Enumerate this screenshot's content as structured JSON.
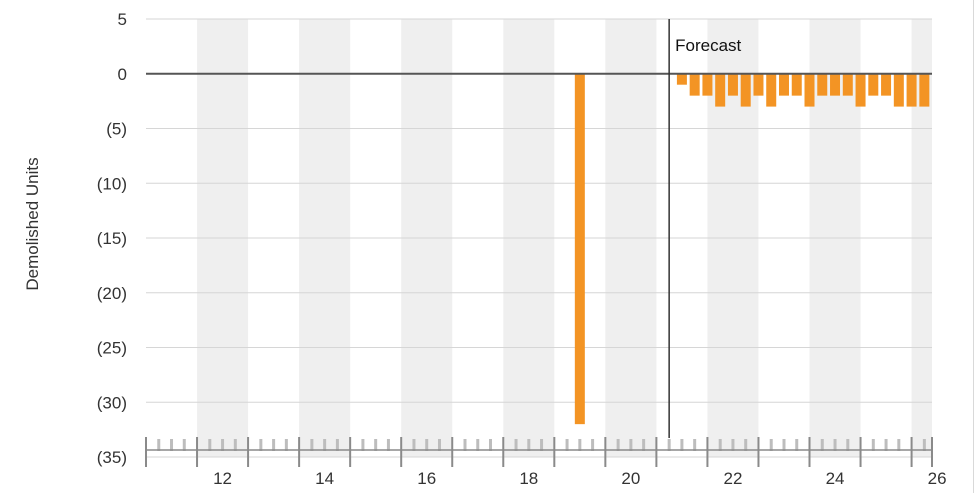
{
  "chart_data": {
    "type": "bar",
    "title": "",
    "xlabel": "",
    "ylabel": "Demolished Units",
    "ylim": [
      -35,
      5
    ],
    "xlim": [
      10.5,
      25.9
    ],
    "y_ticks": [
      {
        "value": 5,
        "label": "5"
      },
      {
        "value": 0,
        "label": "0"
      },
      {
        "value": -5,
        "label": "(5)"
      },
      {
        "value": -10,
        "label": "(10)"
      },
      {
        "value": -15,
        "label": "(15)"
      },
      {
        "value": -20,
        "label": "(20)"
      },
      {
        "value": -25,
        "label": "(25)"
      },
      {
        "value": -30,
        "label": "(30)"
      },
      {
        "value": -35,
        "label": "(35)"
      }
    ],
    "x_ticks": [
      {
        "value": 12,
        "label": "12"
      },
      {
        "value": 14,
        "label": "14"
      },
      {
        "value": 16,
        "label": "16"
      },
      {
        "value": 18,
        "label": "18"
      },
      {
        "value": 20,
        "label": "20"
      },
      {
        "value": 22,
        "label": "22"
      },
      {
        "value": 24,
        "label": "24"
      },
      {
        "value": 26,
        "label": "26"
      }
    ],
    "bands": [
      11.5,
      13.5,
      15.5,
      17.5,
      19.5,
      21.5,
      23.5,
      25.5
    ],
    "grid": true,
    "forecast": {
      "x": 20.75,
      "label": "Forecast"
    },
    "bar_color": "#f39424",
    "series": [
      {
        "x": [
          19.0,
          21.0,
          21.25,
          21.5,
          21.75,
          22.0,
          22.25,
          22.5,
          22.75,
          23.0,
          23.25,
          23.5,
          23.75,
          24.0,
          24.25,
          24.5,
          24.75,
          25.0,
          25.25,
          25.5,
          25.75
        ],
        "values": [
          -32,
          -1,
          -2,
          -2,
          -3,
          -2,
          -3,
          -2,
          -3,
          -2,
          -2,
          -3,
          -2,
          -2,
          -2,
          -3,
          -2,
          -2,
          -3,
          -3,
          -3
        ]
      }
    ]
  }
}
